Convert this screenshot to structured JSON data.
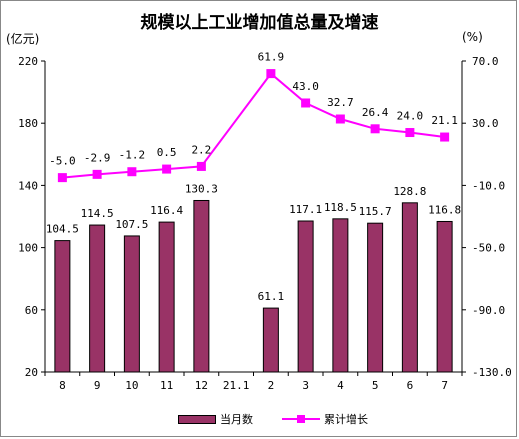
{
  "header": {
    "title": "规模以上工业增加值总量及增速",
    "unit_left": "(亿元)",
    "unit_right": "(%)"
  },
  "colors": {
    "bar_fill": "#993366",
    "bar_stroke": "#000000",
    "line": "#ff00ff",
    "axis": "#000000"
  },
  "legend": {
    "position": "bottom",
    "bar_label": "当月数",
    "line_label": "累计增长"
  },
  "chart_data": {
    "type": "bar",
    "title": "规模以上工业增加值总量及增速",
    "categories": [
      "8",
      "9",
      "10",
      "11",
      "12",
      "21.1",
      "2",
      "3",
      "4",
      "5",
      "6",
      "7"
    ],
    "bar_series": {
      "name": "当月数",
      "axis": "left",
      "values": [
        104.5,
        114.5,
        107.5,
        116.4,
        130.3,
        null,
        61.1,
        117.1,
        118.5,
        115.7,
        128.8,
        116.8
      ],
      "labels": [
        "104.5",
        "114.5",
        "107.5",
        "116.4",
        "130.3",
        "",
        "61.1",
        "117.1",
        "118.5",
        "115.7",
        "128.8",
        "116.8"
      ]
    },
    "line_series": {
      "name": "累计增长",
      "axis": "right",
      "type": "line",
      "values": [
        -5.0,
        -2.9,
        -1.2,
        0.5,
        2.2,
        null,
        61.9,
        43.0,
        32.7,
        26.4,
        24.0,
        21.1
      ],
      "labels": [
        "-5.0",
        "-2.9",
        "-1.2",
        "0.5",
        "2.2",
        "",
        "61.9",
        "43.0",
        "32.7",
        "26.4",
        "24.0",
        "21.1"
      ]
    },
    "y_left": {
      "label": "(亿元)",
      "lim": [
        20,
        220
      ],
      "ticks": [
        "20",
        "60",
        "100",
        "140",
        "180",
        "220"
      ]
    },
    "y_right": {
      "label": "(%)",
      "lim": [
        -130,
        70
      ],
      "ticks": [
        "-130.0",
        "-90.0",
        "-50.0",
        "-10.0",
        "30.0",
        "70.0"
      ]
    },
    "grid": false
  }
}
